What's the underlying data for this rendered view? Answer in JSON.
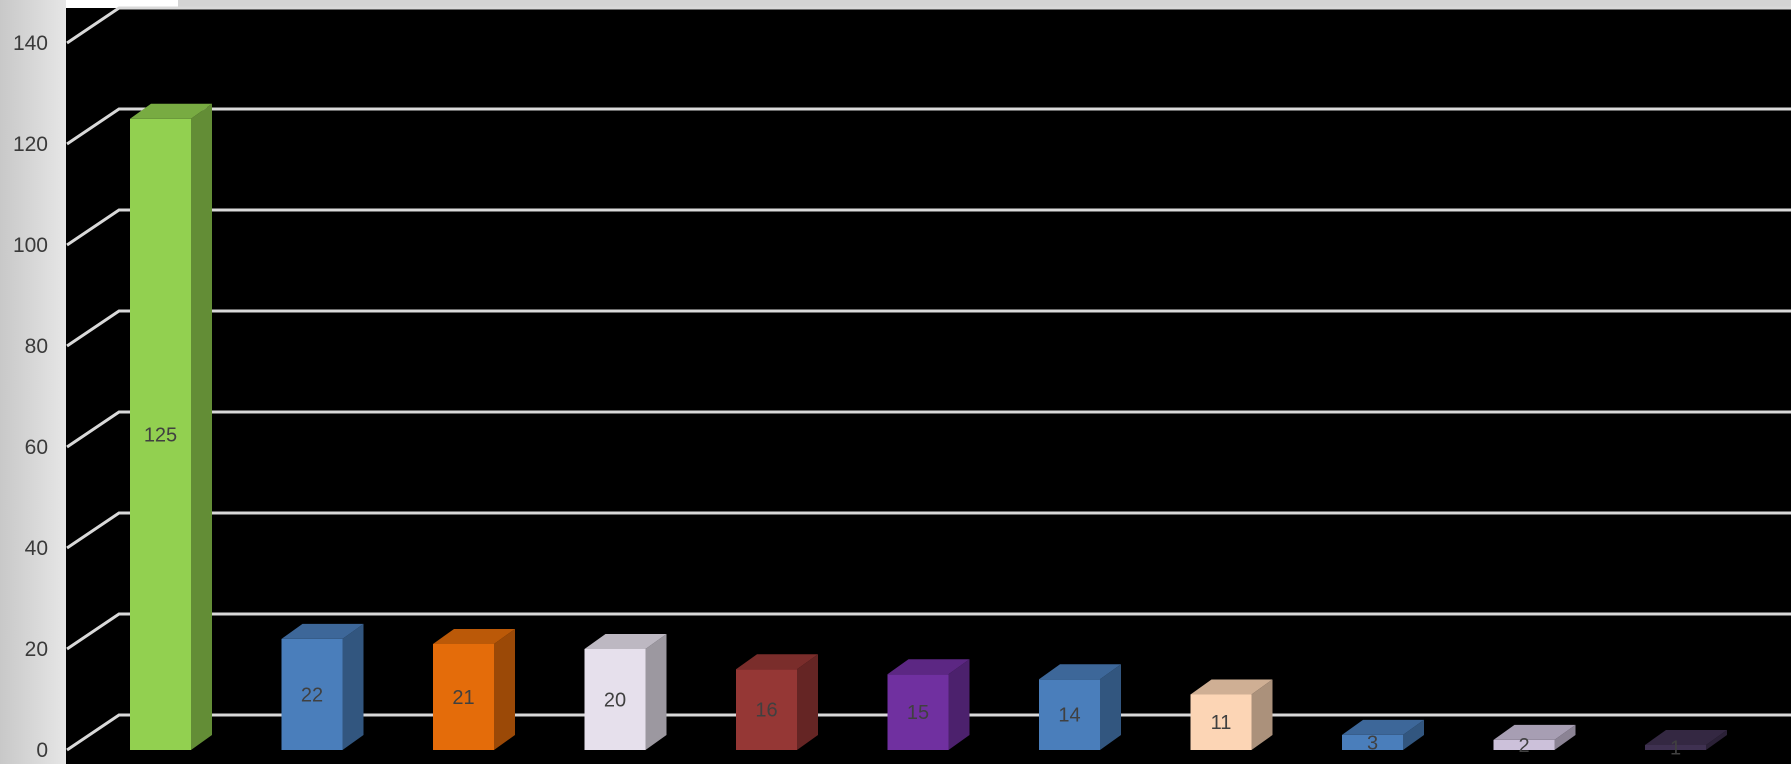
{
  "chart_data": {
    "type": "bar",
    "values": [
      125,
      22,
      21,
      20,
      16,
      15,
      14,
      11,
      3,
      2,
      1
    ],
    "data_labels": [
      "125",
      "22",
      "21",
      "20",
      "16",
      "15",
      "14",
      "11",
      "3",
      "2",
      "1"
    ],
    "bar_colors": [
      "#92d050",
      "#4a7ebb",
      "#e46c0a",
      "#e6e0ec",
      "#953735",
      "#7030a0",
      "#4a7ebb",
      "#fcd5b5",
      "#4a7ebb",
      "#ccc1da",
      "#3f3151"
    ],
    "ylim": [
      0,
      140
    ],
    "y_ticks": [
      "0",
      "20",
      "40",
      "60",
      "80",
      "100",
      "120",
      "140"
    ],
    "y_tick_values": [
      0,
      20,
      40,
      60,
      80,
      100,
      120,
      140
    ],
    "grid": true,
    "style": "3d-column",
    "colors": {
      "background": "#000000",
      "gridline": "#d9d9d9",
      "axis_panel": "#d9d9d9",
      "tick_text": "#3a3a3a"
    }
  }
}
